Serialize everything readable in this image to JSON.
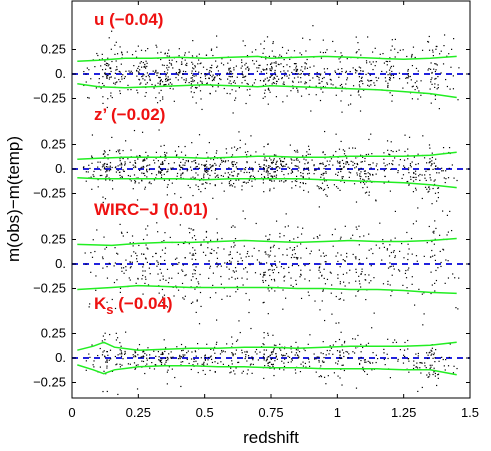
{
  "chart_data": {
    "type": "scatter",
    "xlabel": "redshift",
    "ylabel": "m(obs)−m(temp)",
    "xlim": [
      0,
      1.5
    ],
    "x_ticks": [
      "0",
      "0.25",
      "0.5",
      "0.75",
      "1",
      "1.25",
      "1.5"
    ],
    "y_tick_labels": [
      "0.25",
      "0.",
      "−0.25"
    ],
    "colors": {
      "points": "#000000",
      "envelope": "#22ee22",
      "zero_line": "#2222dd",
      "label": "#ee1111"
    },
    "panels": [
      {
        "label": "u",
        "offset": "(−0.04)",
        "envelope_upper": [
          [
            0.02,
            0.13
          ],
          [
            0.1,
            0.14
          ],
          [
            0.2,
            0.16
          ],
          [
            0.3,
            0.16
          ],
          [
            0.4,
            0.17
          ],
          [
            0.5,
            0.16
          ],
          [
            0.6,
            0.17
          ],
          [
            0.7,
            0.18
          ],
          [
            0.75,
            0.16
          ],
          [
            0.85,
            0.17
          ],
          [
            0.95,
            0.18
          ],
          [
            1.05,
            0.17
          ],
          [
            1.15,
            0.16
          ],
          [
            1.25,
            0.15
          ],
          [
            1.35,
            0.16
          ],
          [
            1.45,
            0.18
          ]
        ],
        "envelope_lower": [
          [
            0.02,
            -0.1
          ],
          [
            0.1,
            -0.13
          ],
          [
            0.2,
            -0.14
          ],
          [
            0.3,
            -0.13
          ],
          [
            0.4,
            -0.12
          ],
          [
            0.5,
            -0.11
          ],
          [
            0.6,
            -0.12
          ],
          [
            0.7,
            -0.13
          ],
          [
            0.75,
            -0.12
          ],
          [
            0.85,
            -0.13
          ],
          [
            0.95,
            -0.14
          ],
          [
            1.05,
            -0.15
          ],
          [
            1.15,
            -0.16
          ],
          [
            1.25,
            -0.18
          ],
          [
            1.35,
            -0.2
          ],
          [
            1.45,
            -0.24
          ]
        ]
      },
      {
        "label": "z’",
        "offset": "(−0.02)",
        "envelope_upper": [
          [
            0.02,
            0.1
          ],
          [
            0.1,
            0.11
          ],
          [
            0.2,
            0.12
          ],
          [
            0.3,
            0.12
          ],
          [
            0.4,
            0.12
          ],
          [
            0.5,
            0.11
          ],
          [
            0.6,
            0.12
          ],
          [
            0.7,
            0.13
          ],
          [
            0.75,
            0.13
          ],
          [
            0.85,
            0.12
          ],
          [
            0.95,
            0.12
          ],
          [
            1.05,
            0.13
          ],
          [
            1.15,
            0.13
          ],
          [
            1.25,
            0.13
          ],
          [
            1.35,
            0.14
          ],
          [
            1.45,
            0.17
          ]
        ],
        "envelope_lower": [
          [
            0.02,
            -0.09
          ],
          [
            0.1,
            -0.1
          ],
          [
            0.2,
            -0.1
          ],
          [
            0.3,
            -0.1
          ],
          [
            0.4,
            -0.1
          ],
          [
            0.5,
            -0.11
          ],
          [
            0.6,
            -0.1
          ],
          [
            0.7,
            -0.1
          ],
          [
            0.75,
            -0.1
          ],
          [
            0.85,
            -0.1
          ],
          [
            0.95,
            -0.11
          ],
          [
            1.05,
            -0.12
          ],
          [
            1.15,
            -0.13
          ],
          [
            1.25,
            -0.14
          ],
          [
            1.35,
            -0.16
          ],
          [
            1.45,
            -0.19
          ]
        ]
      },
      {
        "label": "WIRC−J",
        "offset": "(0.01)",
        "envelope_upper": [
          [
            0.02,
            0.2
          ],
          [
            0.15,
            0.19
          ],
          [
            0.25,
            0.21
          ],
          [
            0.35,
            0.22
          ],
          [
            0.45,
            0.22
          ],
          [
            0.55,
            0.23
          ],
          [
            0.65,
            0.24
          ],
          [
            0.75,
            0.23
          ],
          [
            0.85,
            0.22
          ],
          [
            0.95,
            0.23
          ],
          [
            1.05,
            0.24
          ],
          [
            1.15,
            0.23
          ],
          [
            1.25,
            0.23
          ],
          [
            1.35,
            0.24
          ],
          [
            1.45,
            0.26
          ]
        ],
        "envelope_lower": [
          [
            0.02,
            -0.26
          ],
          [
            0.15,
            -0.24
          ],
          [
            0.25,
            -0.22
          ],
          [
            0.35,
            -0.23
          ],
          [
            0.45,
            -0.24
          ],
          [
            0.55,
            -0.24
          ],
          [
            0.65,
            -0.24
          ],
          [
            0.75,
            -0.24
          ],
          [
            0.85,
            -0.25
          ],
          [
            0.95,
            -0.25
          ],
          [
            1.05,
            -0.26
          ],
          [
            1.15,
            -0.26
          ],
          [
            1.25,
            -0.27
          ],
          [
            1.35,
            -0.29
          ],
          [
            1.45,
            -0.3
          ]
        ]
      },
      {
        "label": "K",
        "label_subscript": "s",
        "offset": "(−0.04)",
        "envelope_upper": [
          [
            0.02,
            0.08
          ],
          [
            0.08,
            0.12
          ],
          [
            0.12,
            0.16
          ],
          [
            0.16,
            0.11
          ],
          [
            0.25,
            0.08
          ],
          [
            0.35,
            0.09
          ],
          [
            0.45,
            0.1
          ],
          [
            0.55,
            0.1
          ],
          [
            0.65,
            0.11
          ],
          [
            0.75,
            0.11
          ],
          [
            0.85,
            0.1
          ],
          [
            0.95,
            0.11
          ],
          [
            1.05,
            0.12
          ],
          [
            1.15,
            0.12
          ],
          [
            1.25,
            0.12
          ],
          [
            1.35,
            0.13
          ],
          [
            1.45,
            0.16
          ]
        ],
        "envelope_lower": [
          [
            0.02,
            -0.07
          ],
          [
            0.08,
            -0.12
          ],
          [
            0.12,
            -0.16
          ],
          [
            0.16,
            -0.12
          ],
          [
            0.25,
            -0.09
          ],
          [
            0.35,
            -0.08
          ],
          [
            0.45,
            -0.08
          ],
          [
            0.55,
            -0.09
          ],
          [
            0.65,
            -0.09
          ],
          [
            0.75,
            -0.1
          ],
          [
            0.85,
            -0.1
          ],
          [
            0.95,
            -0.11
          ],
          [
            1.05,
            -0.11
          ],
          [
            1.15,
            -0.11
          ],
          [
            1.25,
            -0.12
          ],
          [
            1.35,
            -0.12
          ],
          [
            1.45,
            -0.17
          ]
        ]
      }
    ]
  }
}
